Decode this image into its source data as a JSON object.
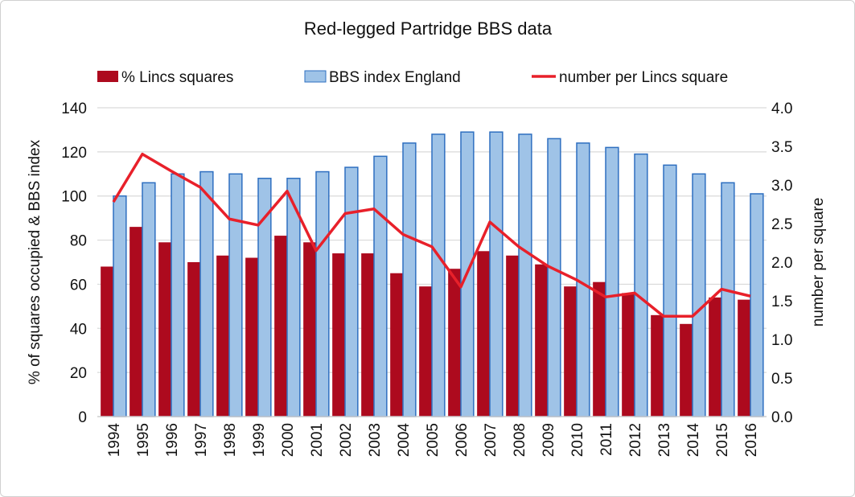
{
  "chart_data": {
    "type": "bar",
    "title": "Red-legged Partridge BBS data",
    "ylabel": "% of squares occupied & BBS index",
    "y2label": "number per square",
    "ylim": [
      0,
      140
    ],
    "y2lim": [
      0,
      4.0
    ],
    "yticks": [
      "0",
      "20",
      "40",
      "60",
      "80",
      "100",
      "120",
      "140"
    ],
    "y2ticks": [
      "0.0",
      "0.5",
      "1.0",
      "1.5",
      "2.0",
      "2.5",
      "3.0",
      "3.5",
      "4.0"
    ],
    "grid": true,
    "legend_position": "top",
    "categories": [
      "1994",
      "1995",
      "1996",
      "1997",
      "1998",
      "1999",
      "2000",
      "2001",
      "2002",
      "2003",
      "2004",
      "2005",
      "2006",
      "2007",
      "2008",
      "2009",
      "2010",
      "2011",
      "2012",
      "2013",
      "2014",
      "2015",
      "2016"
    ],
    "series": [
      {
        "name": "% Lincs squares",
        "type": "bar",
        "axis": "left",
        "color": "#ad0a1e",
        "values": [
          68,
          86,
          79,
          70,
          73,
          72,
          82,
          79,
          74,
          74,
          65,
          59,
          67,
          75,
          73,
          69,
          59,
          61,
          56,
          46,
          42,
          54,
          53
        ]
      },
      {
        "name": "BBS index England",
        "type": "bar",
        "axis": "left",
        "color": "#9fc3e7",
        "edge": "#2e6fc0",
        "values": [
          100,
          106,
          110,
          111,
          110,
          108,
          108,
          111,
          113,
          118,
          124,
          128,
          129,
          129,
          128,
          126,
          124,
          122,
          119,
          114,
          110,
          106,
          101
        ]
      },
      {
        "name": "number per Lincs square",
        "type": "line",
        "axis": "right",
        "color": "#e8202a",
        "values": [
          2.78,
          3.4,
          3.18,
          2.97,
          2.56,
          2.48,
          2.92,
          2.15,
          2.63,
          2.69,
          2.36,
          2.2,
          1.68,
          2.52,
          2.2,
          1.95,
          1.77,
          1.55,
          1.6,
          1.3,
          1.3,
          1.65,
          1.56
        ]
      }
    ]
  }
}
